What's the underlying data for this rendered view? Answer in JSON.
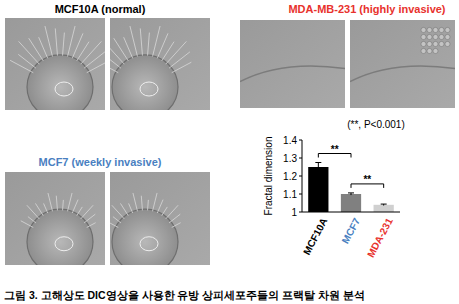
{
  "panels": [
    {
      "label": "MCF10A (normal)",
      "color": "#000000"
    },
    {
      "label": "MDA-MB-231 (highly invasive)",
      "color": "#e8322d"
    },
    {
      "label": "MCF7 (weekly invasive)",
      "color": "#4a7fc1"
    }
  ],
  "chart_data": {
    "type": "bar",
    "title": "(**, P<0.001)",
    "ylabel": "Fractal dimension",
    "categories": [
      "MCF10A",
      "MCF7",
      "MDA-231"
    ],
    "values": [
      1.25,
      1.1,
      1.04
    ],
    "errors": [
      0.025,
      0.006,
      0.004
    ],
    "colors": [
      "#000000",
      "#808080",
      "#d0d0d0"
    ],
    "ylim": [
      1.0,
      1.4
    ],
    "yticks": [
      1,
      1.1,
      1.2,
      1.3,
      1.4
    ],
    "grid": false,
    "significance": [
      {
        "between": [
          "MCF10A",
          "MCF7"
        ],
        "label": "**"
      },
      {
        "between": [
          "MCF7",
          "MDA-231"
        ],
        "label": "**"
      }
    ]
  },
  "caption": "그림 3. 고해상도 DIC영상을 사용한 유방 상피세포주들의 프랙탈 차원 분석"
}
